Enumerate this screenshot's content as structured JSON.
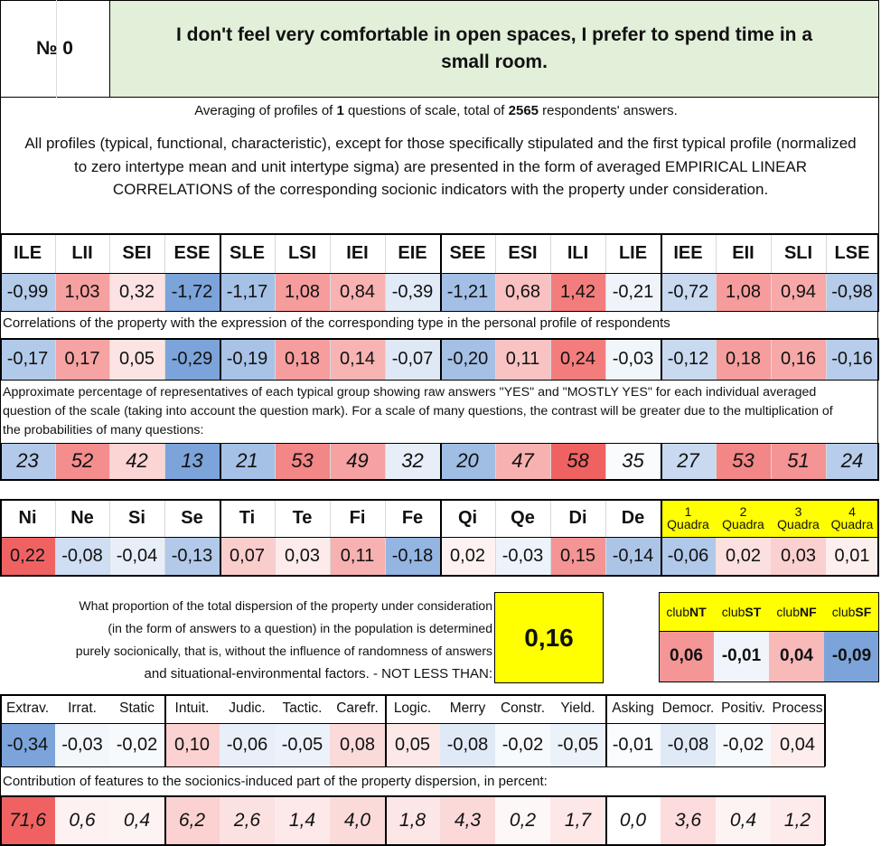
{
  "title": {
    "number": "№ 0",
    "text": "I don't feel very comfortable in open spaces, I prefer to spend time in a small room."
  },
  "summary": {
    "prefix": "Averaging of profiles of ",
    "questions": "1",
    "middle": " questions of scale, total of ",
    "respondents": "2565",
    "suffix": " respondents' answers."
  },
  "description": "All profiles (typical, functional, characteristic), except for those specifically stipulated and the first typical profile (normalized to zero intertype mean and unit intertype sigma) are presented in the form of averaged EMPIRICAL LINEAR CORRELATIONS of the corresponding socionic indicators with the property under consideration.",
  "types": {
    "headers": [
      "ILE",
      "LII",
      "SEI",
      "ESE",
      "SLE",
      "LSI",
      "IEI",
      "EIE",
      "SEE",
      "ESI",
      "ILI",
      "LIE",
      "IEE",
      "EII",
      "SLI",
      "LSE"
    ],
    "profile": [
      "-0,99",
      "1,03",
      "0,32",
      "-1,72",
      "-1,17",
      "1,08",
      "0,84",
      "-0,39",
      "-1,21",
      "0,68",
      "1,42",
      "-0,21",
      "-0,72",
      "1,08",
      "0,94",
      "-0,98"
    ],
    "corr_caption": "Correlations of the property with the expression of the corresponding type in the personal profile of respondents",
    "correlations": [
      "-0,17",
      "0,17",
      "0,05",
      "-0,29",
      "-0,19",
      "0,18",
      "0,14",
      "-0,07",
      "-0,20",
      "0,11",
      "0,24",
      "-0,03",
      "-0,12",
      "0,18",
      "0,16",
      "-0,16"
    ],
    "pct_caption": "Approximate percentage of representatives of each typical group showing raw answers \"YES\" and \"MOSTLY YES\" for each individual averaged question of the scale (taking into account the question mark). For a scale of many questions, the contrast will be greater due to the multiplication of the probabilities of many questions:",
    "percentages": [
      "23",
      "52",
      "42",
      "13",
      "21",
      "53",
      "49",
      "32",
      "20",
      "47",
      "58",
      "35",
      "27",
      "53",
      "51",
      "24"
    ]
  },
  "functions": {
    "headers": [
      "Ni",
      "Ne",
      "Si",
      "Se",
      "Ti",
      "Te",
      "Fi",
      "Fe",
      "Qi",
      "Qe",
      "Di",
      "De"
    ],
    "values": [
      "0,22",
      "-0,08",
      "-0,04",
      "-0,13",
      "0,07",
      "0,03",
      "0,11",
      "-0,18",
      "0,02",
      "-0,03",
      "0,15",
      "-0,14"
    ]
  },
  "quadras": {
    "headers": [
      {
        "num": "1",
        "label": "Quadra"
      },
      {
        "num": "2",
        "label": "Quadra"
      },
      {
        "num": "3",
        "label": "Quadra"
      },
      {
        "num": "4",
        "label": "Quadra"
      }
    ],
    "values": [
      "-0,06",
      "0,02",
      "0,03",
      "0,01"
    ]
  },
  "dispersion": {
    "text": [
      "What proportion of the total dispersion of the property under consideration",
      "(in the form of answers to a question) in the population is determined",
      "purely socionically, that is, without the influence of randomness of answers",
      "and situational-environmental factors. - NOT LESS THAN:"
    ],
    "value": "0,16"
  },
  "clubs": {
    "headers": [
      {
        "pre": "club",
        "bold": "NT"
      },
      {
        "pre": "club",
        "bold": "ST"
      },
      {
        "pre": "club",
        "bold": "NF"
      },
      {
        "pre": "club",
        "bold": "SF"
      }
    ],
    "values": [
      "0,06",
      "-0,01",
      "0,04",
      "-0,09"
    ]
  },
  "traits": {
    "headers": [
      "Extrav.",
      "Irrat.",
      "Static",
      "Intuit.",
      "Judic.",
      "Tactic.",
      "Carefr.",
      "Logic.",
      "Merry",
      "Constr.",
      "Yield.",
      "Asking",
      "Democr.",
      "Positiv.",
      "Process"
    ],
    "values": [
      "-0,34",
      "-0,03",
      "-0,02",
      "0,10",
      "-0,06",
      "-0,05",
      "0,08",
      "0,05",
      "-0,08",
      "-0,02",
      "-0,05",
      "-0,01",
      "-0,08",
      "-0,02",
      "0,04"
    ],
    "contrib_caption": "Contribution of features to the socionics-induced part of the property dispersion, in percent:",
    "contributions": [
      "71,6",
      "0,6",
      "0,4",
      "6,2",
      "2,6",
      "1,4",
      "4,0",
      "1,8",
      "4,3",
      "0,2",
      "1,7",
      "0,0",
      "3,6",
      "0,4",
      "1,2"
    ]
  },
  "colors": {
    "title_bg": "#e2efd9",
    "yellow": "#ffff00"
  }
}
